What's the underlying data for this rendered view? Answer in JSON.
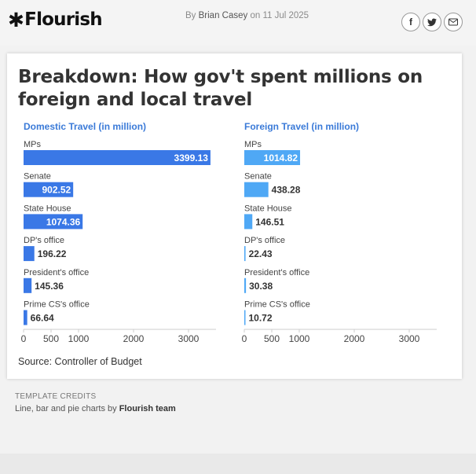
{
  "header": {
    "logo_text": "Flourish",
    "byline_prefix": "By",
    "author": "Brian Casey",
    "date_prefix": "on",
    "date": "11 Jul 2025",
    "share_icons": [
      "facebook-icon",
      "twitter-icon",
      "email-icon"
    ]
  },
  "card": {
    "title": "Breakdown: How gov't spent millions on foreign and local travel",
    "source": "Source: Controller of Budget"
  },
  "chart_data": [
    {
      "type": "bar",
      "orientation": "horizontal",
      "title": "Domestic Travel (in million)",
      "categories": [
        "MPs",
        "Senate",
        "State House",
        "DP's office",
        "President's office",
        "Prime CS's office"
      ],
      "values": [
        3399.13,
        902.52,
        1074.36,
        196.22,
        145.36,
        66.64
      ],
      "labels": [
        "3399.13",
        "902.52",
        "1074.36",
        "196.22",
        "145.36",
        "66.64"
      ],
      "xlim": [
        0,
        3500
      ],
      "ticks": [
        0,
        500,
        1000,
        2000,
        3000
      ],
      "color": "#3a78e6"
    },
    {
      "type": "bar",
      "orientation": "horizontal",
      "title": "Foreign Travel (in million)",
      "categories": [
        "MPs",
        "Senate",
        "State House",
        "DP's office",
        "President's office",
        "Prime CS's office"
      ],
      "values": [
        1014.82,
        438.28,
        146.51,
        22.43,
        30.38,
        10.72
      ],
      "labels": [
        "1014.82",
        "438.28",
        "146.51",
        "22.43",
        "30.38",
        "10.72"
      ],
      "xlim": [
        0,
        3500
      ],
      "ticks": [
        0,
        500,
        1000,
        2000,
        3000
      ],
      "color": "#4fa8f5"
    }
  ],
  "credits": {
    "heading": "TEMPLATE CREDITS",
    "text": "Line, bar and pie charts by",
    "team": "Flourish team"
  }
}
